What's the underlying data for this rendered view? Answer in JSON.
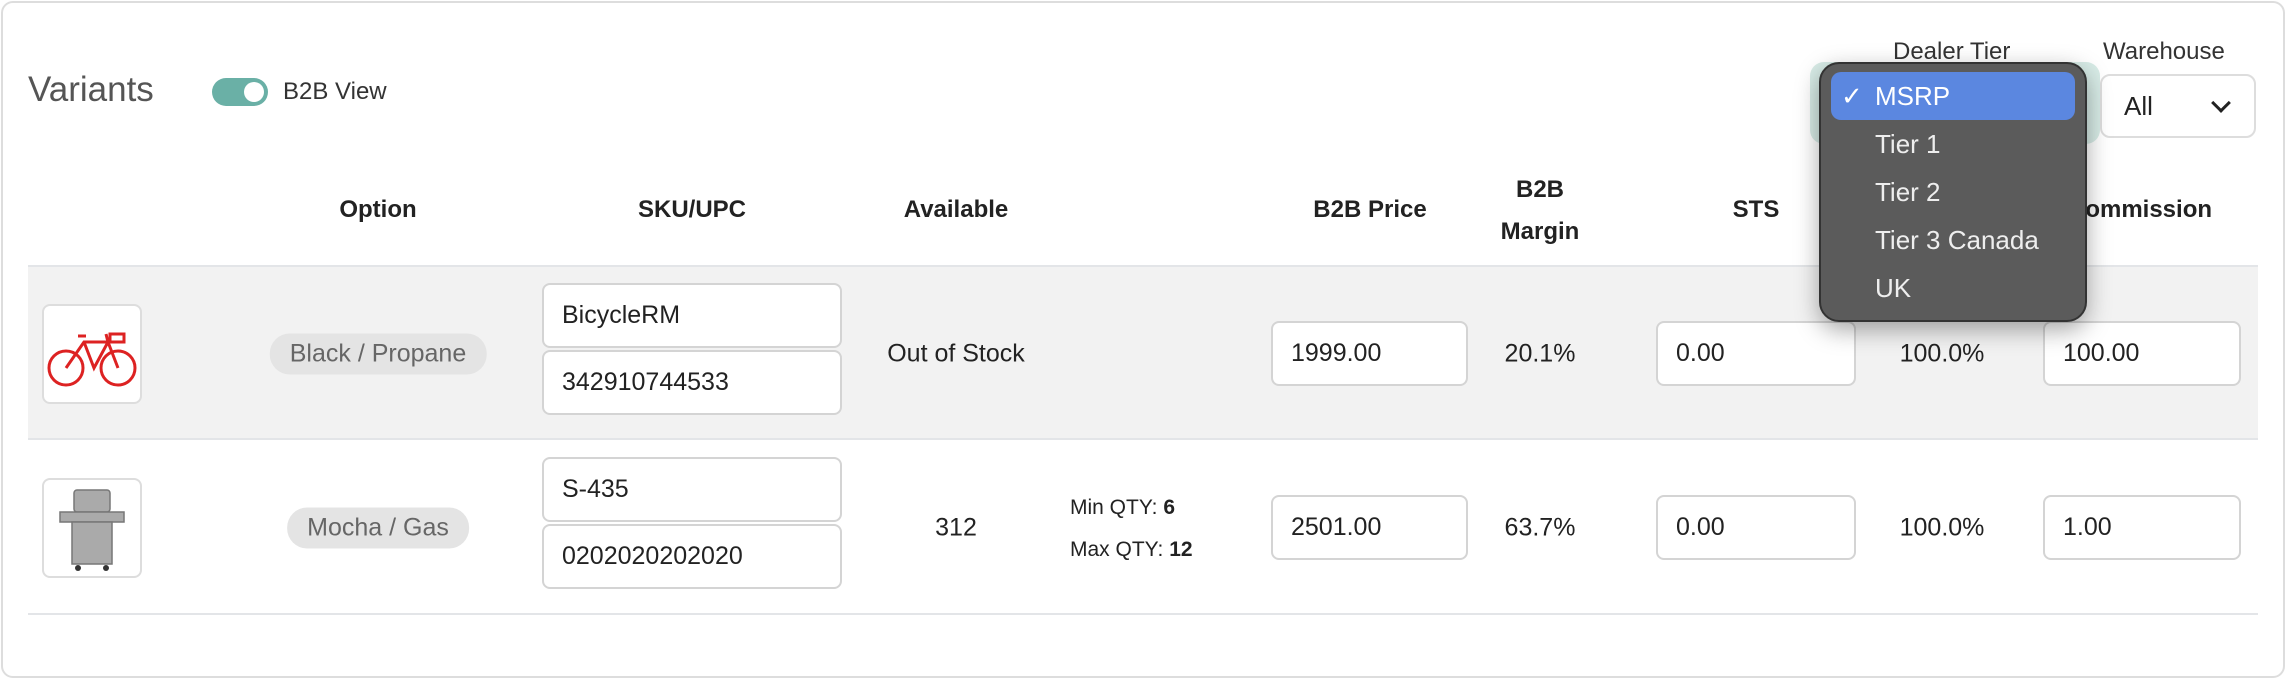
{
  "header": {
    "title": "Variants",
    "toggle_label": "B2B View",
    "toggle_on": true
  },
  "filters": {
    "dealer_tier_label": "Dealer Tier",
    "warehouse_label": "Warehouse",
    "warehouse_value": "All",
    "dealer_tier_options": [
      "MSRP",
      "Tier 1",
      "Tier 2",
      "Tier 3 Canada",
      "UK"
    ],
    "dealer_tier_selected": "MSRP",
    "check": "✓"
  },
  "columns": {
    "option": "Option",
    "sku": "SKU/UPC",
    "available": "Available",
    "b2b_price": "B2B Price",
    "b2b_margin_1": "B2B",
    "b2b_margin_2": "Margin",
    "sts": "STS",
    "commission": "Commission"
  },
  "colors": {
    "accent": "#6ab0a6",
    "dropdown_selected": "#5b87e0"
  },
  "rows": [
    {
      "image": "bicycle-image",
      "option": "Black / Propane",
      "sku": "BicycleRM",
      "upc": "342910744533",
      "available": "Out of Stock",
      "min_label": "",
      "min_qty": "",
      "max_label": "",
      "max_qty": "",
      "b2b_price": "1999.00",
      "b2b_margin": "20.1%",
      "sts": "0.00",
      "sts_margin": "100.0%",
      "commission": "100.00"
    },
    {
      "image": "grill-image",
      "option": "Mocha / Gas",
      "sku": "S-435",
      "upc": "0202020202020",
      "available": "312",
      "min_label": "Min QTY: ",
      "min_qty": "6",
      "max_label": "Max QTY: ",
      "max_qty": "12",
      "b2b_price": "2501.00",
      "b2b_margin": "63.7%",
      "sts": "0.00",
      "sts_margin": "100.0%",
      "commission": "1.00"
    }
  ]
}
